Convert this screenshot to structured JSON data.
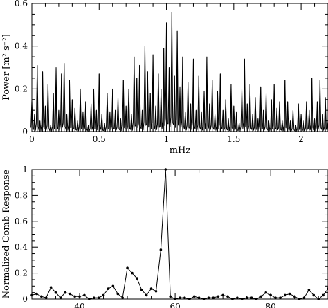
{
  "chart_data": [
    {
      "type": "line",
      "xlabel": "mHz",
      "ylabel": "Power [m² s⁻²]",
      "xlim": [
        0,
        2.2
      ],
      "ylim": [
        0,
        0.6
      ],
      "xticks": [
        0,
        0.5,
        1,
        1.5,
        2
      ],
      "xtick_labels": [
        "0",
        "0.5",
        "1",
        "1.5",
        "2"
      ],
      "yticks": [
        0,
        0.2,
        0.4,
        0.6
      ],
      "ytick_labels": [
        "0",
        "0.2",
        "0.4",
        "0.6"
      ],
      "grid": false,
      "series": [
        {
          "x": [
            0.0,
            0.02,
            0.04,
            0.06,
            0.08,
            0.1,
            0.12,
            0.14,
            0.16,
            0.18,
            0.2,
            0.22,
            0.24,
            0.26,
            0.28,
            0.3,
            0.32,
            0.34,
            0.36,
            0.38,
            0.4,
            0.42,
            0.44,
            0.46,
            0.48,
            0.5,
            0.52,
            0.54,
            0.56,
            0.58,
            0.6,
            0.62,
            0.64,
            0.66,
            0.68,
            0.7,
            0.72,
            0.74,
            0.76,
            0.78,
            0.8,
            0.82,
            0.84,
            0.86,
            0.88,
            0.9,
            0.92,
            0.94,
            0.96,
            0.98,
            1.0,
            1.02,
            1.04,
            1.06,
            1.08,
            1.1,
            1.12,
            1.14,
            1.16,
            1.18,
            1.2,
            1.22,
            1.24,
            1.26,
            1.28,
            1.3,
            1.32,
            1.34,
            1.36,
            1.38,
            1.4,
            1.42,
            1.44,
            1.46,
            1.48,
            1.5,
            1.52,
            1.54,
            1.56,
            1.58,
            1.6,
            1.62,
            1.64,
            1.66,
            1.68,
            1.7,
            1.72,
            1.74,
            1.76,
            1.78,
            1.8,
            1.82,
            1.84,
            1.86,
            1.88,
            1.9,
            1.92,
            1.94,
            1.96,
            1.98,
            2.0,
            2.02,
            2.04,
            2.06,
            2.08,
            2.1,
            2.12,
            2.14,
            2.16,
            2.18,
            2.2
          ],
          "values": [
            0.15,
            0.08,
            0.31,
            0.05,
            0.28,
            0.12,
            0.22,
            0.03,
            0.18,
            0.3,
            0.1,
            0.27,
            0.32,
            0.08,
            0.24,
            0.15,
            0.11,
            0.05,
            0.2,
            0.09,
            0.14,
            0.03,
            0.13,
            0.2,
            0.1,
            0.27,
            0.08,
            0.04,
            0.18,
            0.09,
            0.2,
            0.1,
            0.16,
            0.06,
            0.24,
            0.12,
            0.2,
            0.08,
            0.35,
            0.25,
            0.31,
            0.1,
            0.4,
            0.28,
            0.18,
            0.36,
            0.12,
            0.27,
            0.2,
            0.39,
            0.51,
            0.3,
            0.56,
            0.26,
            0.47,
            0.21,
            0.35,
            0.09,
            0.23,
            0.13,
            0.34,
            0.1,
            0.26,
            0.09,
            0.19,
            0.35,
            0.13,
            0.24,
            0.08,
            0.19,
            0.27,
            0.1,
            0.15,
            0.06,
            0.22,
            0.12,
            0.09,
            0.04,
            0.2,
            0.34,
            0.13,
            0.22,
            0.08,
            0.16,
            0.06,
            0.21,
            0.1,
            0.18,
            0.05,
            0.15,
            0.22,
            0.11,
            0.14,
            0.05,
            0.24,
            0.14,
            0.05,
            0.1,
            0.03,
            0.13,
            0.08,
            0.05,
            0.14,
            0.1,
            0.25,
            0.06,
            0.14,
            0.24,
            0.08,
            0.16,
            0.05
          ]
        }
      ]
    },
    {
      "type": "line",
      "xlabel": "",
      "ylabel": "Normalized Comb Response",
      "xlim": [
        30,
        92
      ],
      "ylim": [
        0,
        1
      ],
      "xticks": [
        40,
        60,
        80
      ],
      "xtick_labels": [
        "40",
        "60",
        "80"
      ],
      "yticks": [
        0,
        0.2,
        0.4,
        0.6,
        0.8,
        1
      ],
      "ytick_labels": [
        "0",
        "0.2",
        "0.4",
        "0.6",
        "0.8",
        "1"
      ],
      "grid": false,
      "series": [
        {
          "x": [
            30,
            31,
            32,
            33,
            34,
            35,
            36,
            37,
            38,
            39,
            40,
            41,
            42,
            43,
            44,
            45,
            46,
            47,
            48,
            49,
            50,
            51,
            52,
            53,
            54,
            55,
            56,
            57,
            58,
            59,
            60,
            61,
            62,
            63,
            64,
            65,
            66,
            67,
            68,
            69,
            70,
            71,
            72,
            73,
            74,
            75,
            76,
            77,
            78,
            79,
            80,
            81,
            82,
            83,
            84,
            85,
            86,
            87,
            88,
            89,
            90,
            91,
            92
          ],
          "values": [
            0.03,
            0.04,
            0.02,
            0.01,
            0.09,
            0.05,
            0.01,
            0.05,
            0.04,
            0.02,
            0.02,
            0.03,
            0.0,
            0.01,
            0.01,
            0.03,
            0.08,
            0.1,
            0.04,
            0.01,
            0.24,
            0.2,
            0.16,
            0.07,
            0.03,
            0.08,
            0.06,
            0.38,
            1.0,
            0.02,
            0.0,
            0.01,
            0.01,
            0.0,
            0.02,
            0.01,
            0.0,
            0.01,
            0.01,
            0.02,
            0.03,
            0.02,
            0.0,
            0.01,
            0.0,
            0.01,
            0.01,
            0.0,
            0.02,
            0.05,
            0.03,
            0.01,
            0.01,
            0.03,
            0.04,
            0.02,
            0.0,
            0.01,
            0.07,
            0.03,
            0.0,
            0.03,
            0.08
          ]
        }
      ]
    }
  ]
}
